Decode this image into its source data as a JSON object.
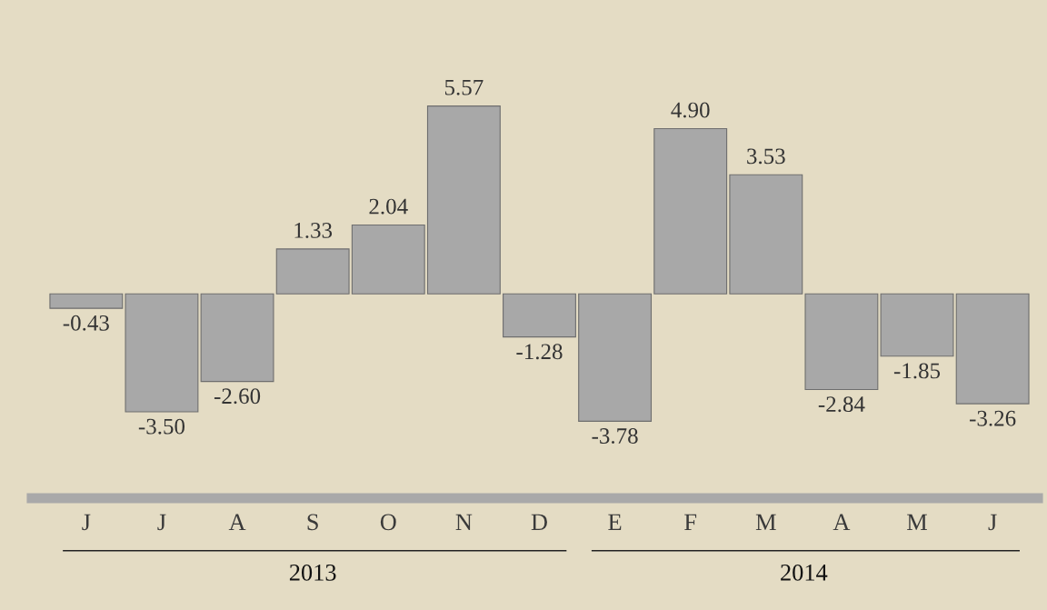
{
  "chart_data": {
    "type": "bar",
    "categories": [
      "J",
      "J",
      "A",
      "S",
      "O",
      "N",
      "D",
      "E",
      "F",
      "M",
      "A",
      "M",
      "J"
    ],
    "values": [
      -0.43,
      -3.5,
      -2.6,
      1.33,
      2.04,
      5.57,
      -1.28,
      -3.78,
      4.9,
      3.53,
      -2.84,
      -1.85,
      -3.26
    ],
    "value_labels": [
      "-0.43",
      "-3.50",
      "-2.60",
      "1.33",
      "2.04",
      "5.57",
      "-1.28",
      "-3.78",
      "4.90",
      "3.53",
      "-2.84",
      "-1.85",
      "-3.26"
    ],
    "color": "#a8a8a8",
    "annotations": [
      "2013",
      "2014"
    ]
  }
}
